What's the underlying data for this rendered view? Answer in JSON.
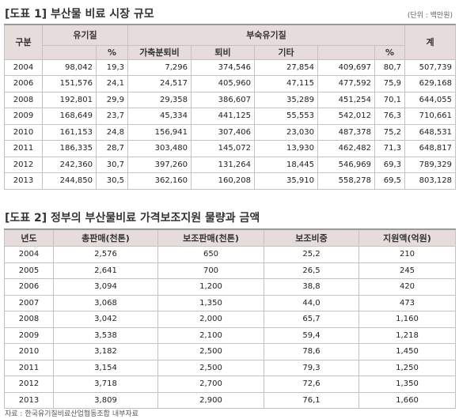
{
  "table1": {
    "title": "[도표 1] 부산물 비료 시장 규모",
    "unit": "(단위 : 백만원)",
    "header": {
      "category": "구분",
      "organic": "유기질",
      "composted": "부숙유기질",
      "total": "계",
      "sub": [
        "%",
        "가축분퇴비",
        "퇴비",
        "기타",
        "%"
      ]
    },
    "rows": [
      [
        "2004",
        "98,042",
        "19,3",
        "7,296",
        "374,546",
        "27,854",
        "409,697",
        "80,7",
        "507,739"
      ],
      [
        "2006",
        "151,576",
        "24,1",
        "24,517",
        "405,960",
        "47,115",
        "477,592",
        "75,9",
        "629,168"
      ],
      [
        "2008",
        "192,801",
        "29,9",
        "29,358",
        "386,607",
        "35,289",
        "451,254",
        "70,1",
        "644,055"
      ],
      [
        "2009",
        "168,649",
        "23,7",
        "45,334",
        "441,125",
        "55,553",
        "542,012",
        "76,3",
        "710,661"
      ],
      [
        "2010",
        "161,153",
        "24,8",
        "156,941",
        "307,406",
        "23,030",
        "487,378",
        "75,2",
        "648,531"
      ],
      [
        "2011",
        "186,335",
        "28,7",
        "303,480",
        "145,072",
        "13,930",
        "462,482",
        "71,3",
        "648,817"
      ],
      [
        "2012",
        "242,360",
        "30,7",
        "397,260",
        "131,264",
        "18,445",
        "546,969",
        "69,3",
        "789,329"
      ],
      [
        "2013",
        "244,850",
        "30,5",
        "362,160",
        "160,208",
        "35,910",
        "558,278",
        "69,5",
        "803,128"
      ]
    ]
  },
  "table2": {
    "title": "[도표 2] 정부의 부산물비료 가격보조지원 물량과 금액",
    "columns": [
      "년도",
      "총판매(천톤)",
      "보조판매(천톤)",
      "보조비중",
      "지원액(억원)"
    ],
    "rows": [
      [
        "2004",
        "2,576",
        "650",
        "25,2",
        "210"
      ],
      [
        "2005",
        "2,641",
        "700",
        "26,5",
        "245"
      ],
      [
        "2006",
        "3,094",
        "1,200",
        "38,8",
        "420"
      ],
      [
        "2007",
        "3,068",
        "1,350",
        "44,0",
        "473"
      ],
      [
        "2008",
        "3,042",
        "2,000",
        "65,7",
        "1,160"
      ],
      [
        "2009",
        "3,538",
        "2,100",
        "59,4",
        "1,218"
      ],
      [
        "2010",
        "3,182",
        "2,500",
        "78,6",
        "1,450"
      ],
      [
        "2011",
        "3,154",
        "2,500",
        "79,3",
        "1,250"
      ],
      [
        "2012",
        "3,718",
        "2,700",
        "72,6",
        "1,350"
      ],
      [
        "2013",
        "3,809",
        "2,900",
        "76,1",
        "1,660"
      ]
    ]
  },
  "source": "자료 : 한국유기질비료산업협동조합 내부자료"
}
